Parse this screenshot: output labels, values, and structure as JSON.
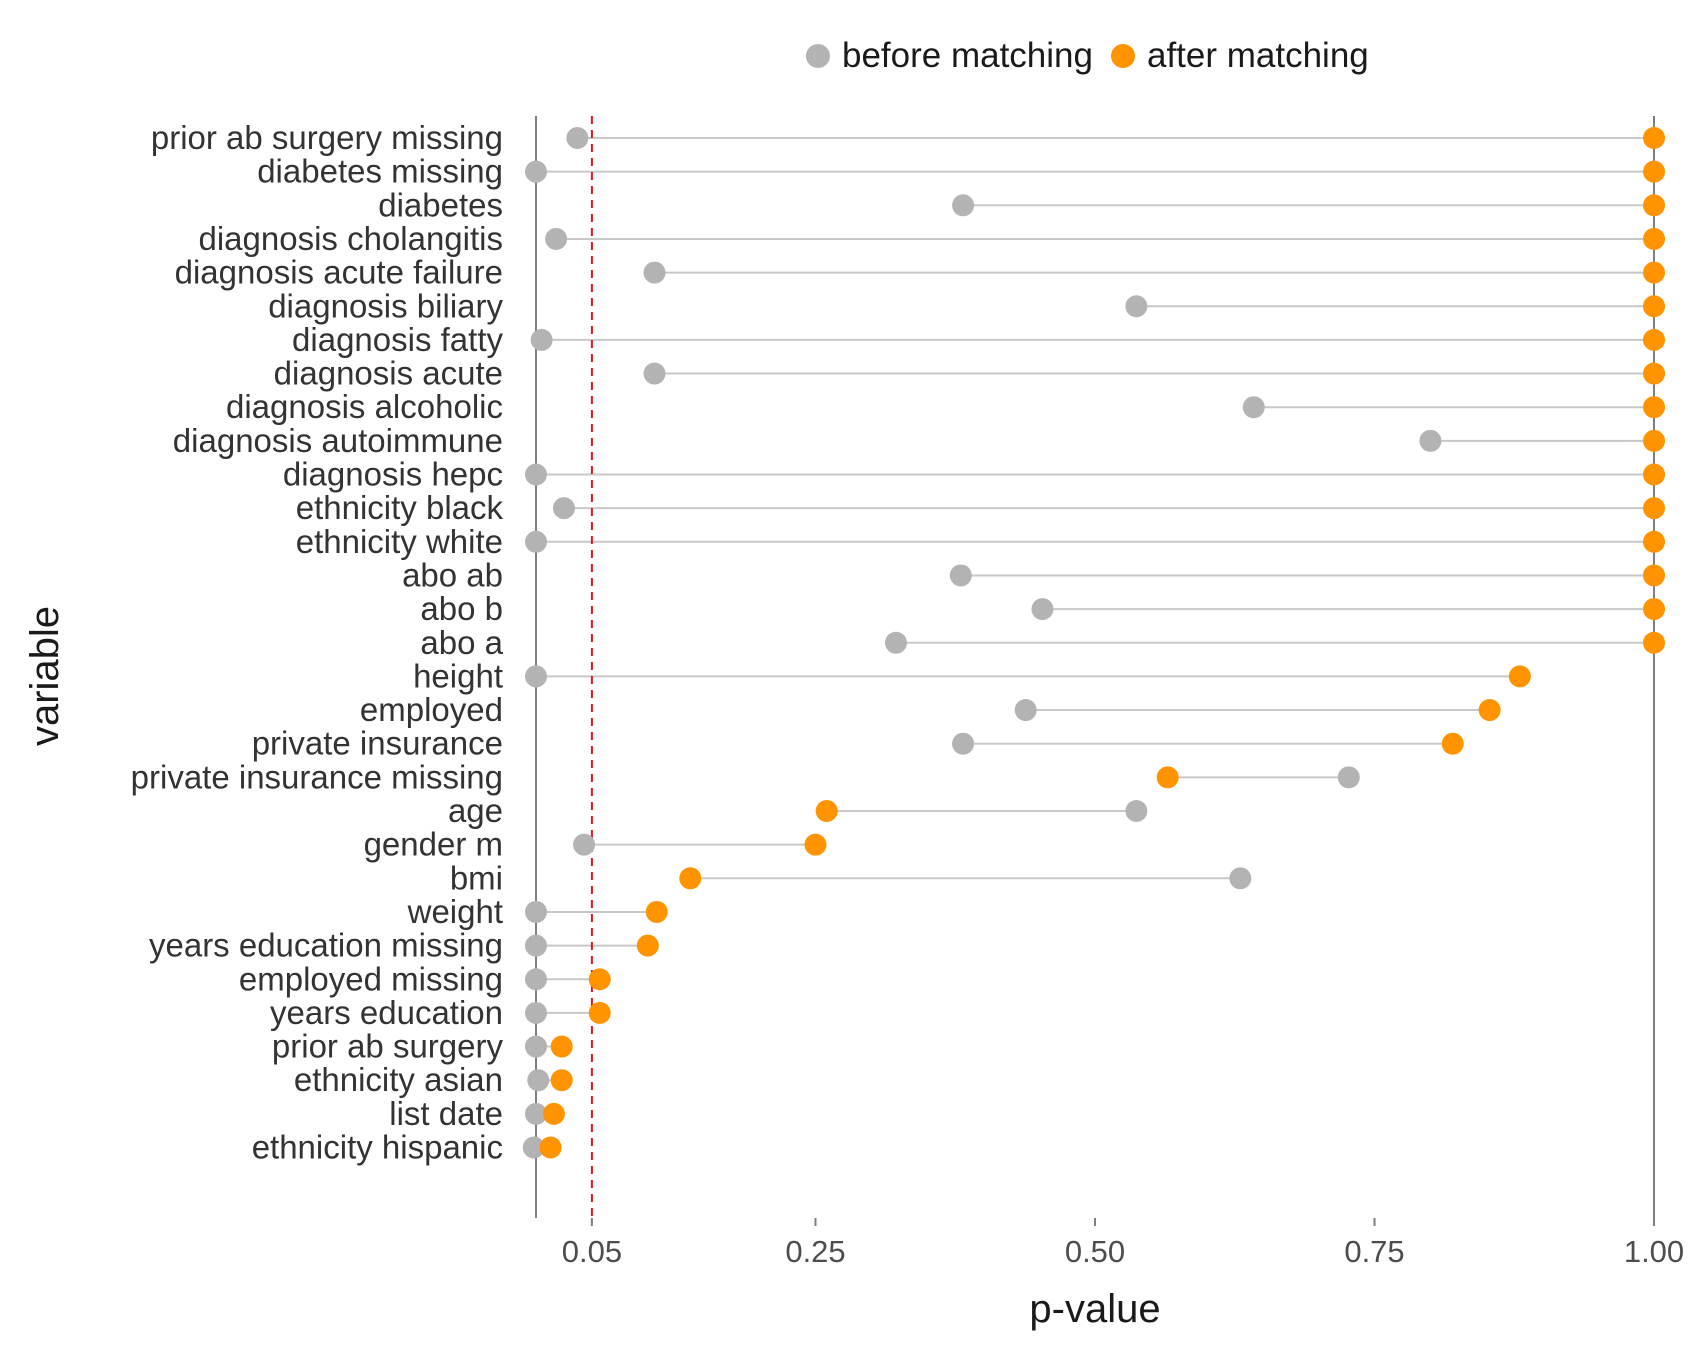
{
  "chart_data": {
    "type": "dot",
    "xlabel": "p-value",
    "ylabel": "variable",
    "xlim": [
      0,
      1
    ],
    "xticks": [
      0.05,
      0.25,
      0.5,
      0.75,
      1.0
    ],
    "xtick_labels": [
      "0.05",
      "0.25",
      "0.50",
      "0.75",
      "1.00"
    ],
    "threshold": 0.05,
    "grid": false,
    "legend_position": "top",
    "colors": {
      "before": "#b3b3b3",
      "after": "#ff9400",
      "threshold": "#e8141c",
      "segment": "#c8c8c8",
      "axis": "#7f7f7f"
    },
    "series": [
      {
        "name": "before matching",
        "key": "before"
      },
      {
        "name": "after matching",
        "key": "after"
      }
    ],
    "categories": [
      "prior ab surgery missing",
      "diabetes missing",
      "diabetes",
      "diagnosis cholangitis",
      "diagnosis acute failure",
      "diagnosis biliary",
      "diagnosis fatty",
      "diagnosis acute",
      "diagnosis alcoholic",
      "diagnosis autoimmune",
      "diagnosis hepc",
      "ethnicity black",
      "ethnicity white",
      "abo ab",
      "abo b",
      "abo a",
      "height",
      "employed",
      "private insurance",
      "private insurance missing",
      "age",
      "gender m",
      "bmi",
      "weight",
      "years education missing",
      "employed missing",
      "years education",
      "prior ab surgery",
      "ethnicity asian",
      "list date",
      "ethnicity hispanic"
    ],
    "before": [
      0.037,
      0.0,
      0.382,
      0.018,
      0.106,
      0.537,
      0.005,
      0.106,
      0.642,
      0.8,
      0.0,
      0.025,
      0.0,
      0.38,
      0.453,
      0.322,
      0.0,
      0.438,
      0.382,
      0.727,
      0.537,
      0.043,
      0.63,
      0.0,
      0.0,
      0.0,
      0.0,
      0.0,
      0.002,
      0.0,
      -0.002
    ],
    "after": [
      1.0,
      1.0,
      1.0,
      1.0,
      1.0,
      1.0,
      1.0,
      1.0,
      1.0,
      1.0,
      1.0,
      1.0,
      1.0,
      1.0,
      1.0,
      1.0,
      0.88,
      0.853,
      0.82,
      0.565,
      0.26,
      0.25,
      0.138,
      0.108,
      0.1,
      0.057,
      0.057,
      0.023,
      0.023,
      0.016,
      0.013
    ]
  }
}
